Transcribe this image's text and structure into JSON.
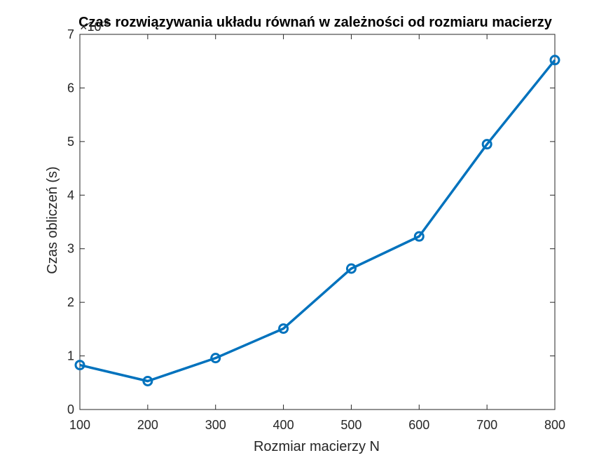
{
  "chart_data": {
    "type": "line",
    "title": "Czas rozwiązywania układu równań w zależności od rozmiaru macierzy",
    "xlabel": "Rozmiar macierzy N",
    "ylabel": "Czas obliczeń (s)",
    "y_multiplier": {
      "base": "×10",
      "exponent": "-3"
    },
    "xlim": [
      100,
      800
    ],
    "ylim": [
      0,
      7
    ],
    "xticks": [
      100,
      200,
      300,
      400,
      500,
      600,
      700,
      800
    ],
    "yticks": [
      0,
      1,
      2,
      3,
      4,
      5,
      6,
      7
    ],
    "grid": false,
    "marker": "circle",
    "series_color": "#0072BD",
    "series": [
      {
        "x": [
          100,
          200,
          300,
          400,
          500,
          600,
          700,
          800
        ],
        "values": [
          0.83,
          0.53,
          0.96,
          1.51,
          2.63,
          3.23,
          4.95,
          6.52
        ]
      }
    ]
  }
}
